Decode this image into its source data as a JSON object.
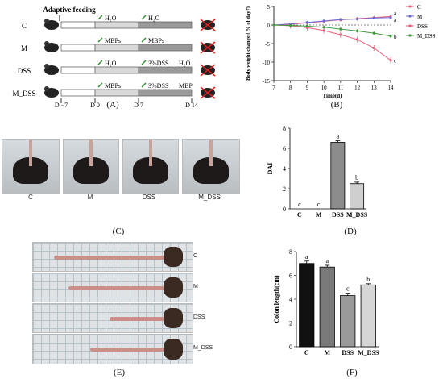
{
  "panel_labels": {
    "A": "(A)",
    "B": "(B)",
    "C": "(C)",
    "D": "(D)",
    "E": "(E)",
    "F": "(F)"
  },
  "panel_a": {
    "header": "Adaptive feeding",
    "groups": [
      {
        "name": "C",
        "seg1": "H₂O",
        "seg2": "H₂O",
        "seg3": ""
      },
      {
        "name": "M",
        "seg1": "MBPs",
        "seg2": "MBPs",
        "seg3": ""
      },
      {
        "name": "DSS",
        "seg1": "H₂O",
        "seg2": "3%DSS",
        "seg3": "H₂O"
      },
      {
        "name": "M_DSS",
        "seg1": "MBPs",
        "seg2": "3%DSS",
        "seg3": "MBP"
      }
    ],
    "timepoints": [
      "D −7",
      "D 0",
      "D 7",
      "D 14"
    ]
  },
  "panel_c": {
    "captions": [
      "C",
      "M",
      "DSS",
      "M_DSS"
    ]
  },
  "panel_e": {
    "captions": [
      "C",
      "M",
      "DSS",
      "M_DSS"
    ]
  },
  "chart_data": [
    {
      "type": "line",
      "xlabel": "Time(d)",
      "ylabel": "Body weight change ( % of day7)",
      "x": [
        7,
        8,
        9,
        10,
        11,
        12,
        13,
        14
      ],
      "xticks": [
        "7",
        "8",
        "9",
        "10",
        "11",
        "12",
        "13",
        "14"
      ],
      "yticks": [
        "-15",
        "-10",
        "-5",
        "0",
        "5"
      ],
      "ylim": [
        -15,
        5
      ],
      "xlim": [
        7,
        14
      ],
      "legend_position": "right",
      "reference_line_y": 0,
      "series": [
        {
          "name": "C",
          "color": "#e8607a",
          "values": [
            0,
            0.2,
            0.6,
            1.0,
            1.4,
            1.7,
            2.0,
            2.3
          ],
          "err": 0.5,
          "end_label": "a"
        },
        {
          "name": "M",
          "color": "#6b6bd6",
          "values": [
            0,
            0.3,
            0.7,
            1.1,
            1.5,
            1.6,
            1.9,
            2.0
          ],
          "err": 0.4,
          "end_label": "a"
        },
        {
          "name": "DSS",
          "color": "#e8607a",
          "values": [
            0,
            -0.2,
            -0.7,
            -1.5,
            -2.6,
            -3.9,
            -6.2,
            -9.5
          ],
          "err": 0.8,
          "end_label": "c"
        },
        {
          "name": "M_DSS",
          "color": "#3d9a3d",
          "values": [
            0,
            -0.1,
            -0.3,
            -0.6,
            -1.1,
            -1.6,
            -2.2,
            -3.0
          ],
          "err": 0.5,
          "end_label": "b"
        }
      ]
    },
    {
      "type": "bar",
      "ylabel": "DAI",
      "categories": [
        "C",
        "M",
        "DSS",
        "M_DSS"
      ],
      "values": [
        0,
        0,
        6.6,
        2.5
      ],
      "errors": [
        0,
        0,
        0.15,
        0.15
      ],
      "letters": [
        "c",
        "c",
        "a",
        "b"
      ],
      "colors": [
        "#ffffff",
        "#ffffff",
        "#8c8c8c",
        "#cfcfcf"
      ],
      "yticks": [
        "0",
        "2",
        "4",
        "6",
        "8"
      ],
      "ylim": [
        0,
        8
      ]
    },
    {
      "type": "bar",
      "ylabel": "Colon length(cm)",
      "categories": [
        "C",
        "M",
        "DSS",
        "M_DSS"
      ],
      "values": [
        7.0,
        6.7,
        4.3,
        5.2
      ],
      "errors": [
        0.2,
        0.15,
        0.2,
        0.1
      ],
      "letters": [
        "a",
        "a",
        "c",
        "b"
      ],
      "colors": [
        "#111111",
        "#7a7a7a",
        "#9a9a9a",
        "#d6d6d6"
      ],
      "yticks": [
        "0",
        "2",
        "4",
        "6",
        "8"
      ],
      "ylim": [
        0,
        8
      ]
    }
  ]
}
